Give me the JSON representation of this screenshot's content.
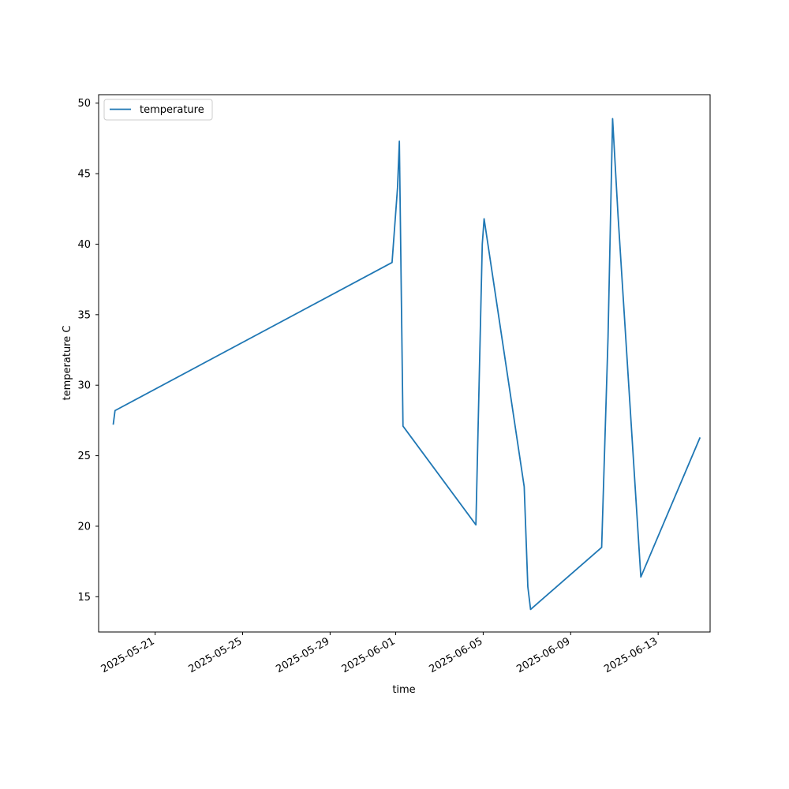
{
  "chart_data": {
    "type": "line",
    "title": "",
    "xlabel": "time",
    "ylabel": "temperature C",
    "x_scale": "date",
    "xlim": [
      "2025-05-18T10:00",
      "2025-06-15T09:00"
    ],
    "ylim": [
      12.5,
      50.6
    ],
    "x_ticks": [
      "2025-05-21",
      "2025-05-25",
      "2025-05-29",
      "2025-06-01",
      "2025-06-05",
      "2025-06-09",
      "2025-06-13"
    ],
    "y_ticks": [
      15,
      20,
      25,
      30,
      35,
      40,
      45,
      50
    ],
    "grid": false,
    "legend": "top-left",
    "series": [
      {
        "name": "temperature",
        "color": "#1f77b4",
        "x": [
          "2025-05-19T02:00",
          "2025-05-19T04:00",
          "2025-05-31T20:00",
          "2025-06-01T02:00",
          "2025-06-01T04:00",
          "2025-06-01T08:00",
          "2025-06-04T16:00",
          "2025-06-04T23:00",
          "2025-06-05T01:00",
          "2025-06-06T21:00",
          "2025-06-07T01:00",
          "2025-06-07T04:00",
          "2025-06-10T10:00",
          "2025-06-10T17:00",
          "2025-06-10T22:00",
          "2025-06-11T04:00",
          "2025-06-12T05:00",
          "2025-06-14T22:00"
        ],
        "y": [
          27.2,
          28.2,
          38.7,
          44.0,
          47.3,
          27.1,
          20.1,
          40.0,
          41.8,
          22.8,
          15.7,
          14.1,
          18.5,
          33.4,
          48.9,
          42.0,
          16.4,
          26.3
        ]
      }
    ]
  }
}
